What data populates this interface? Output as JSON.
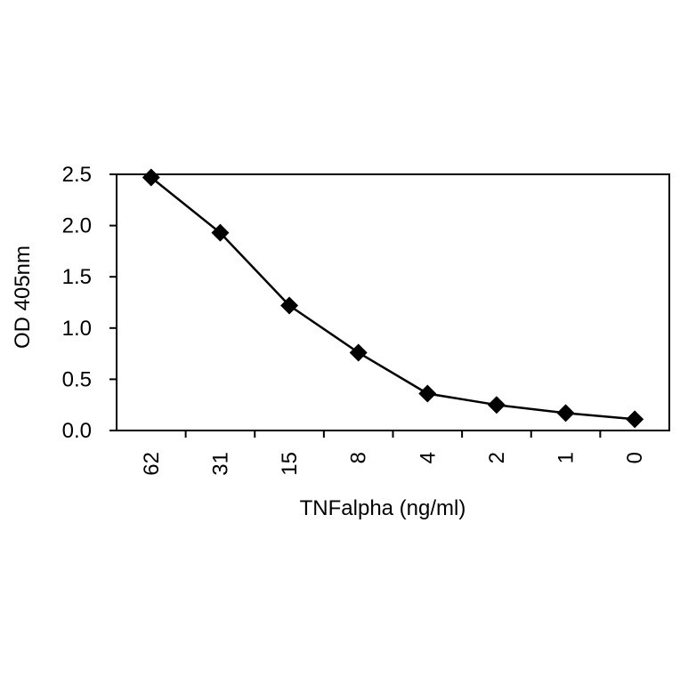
{
  "chart_data": {
    "type": "line",
    "title": "",
    "xlabel": "TNFalpha  (ng/ml)",
    "ylabel": "OD 405nm",
    "categories": [
      "62",
      "31",
      "15",
      "8",
      "4",
      "2",
      "1",
      "0"
    ],
    "values": [
      2.47,
      1.93,
      1.22,
      0.76,
      0.36,
      0.25,
      0.17,
      0.11
    ],
    "ylim": [
      0,
      2.5
    ],
    "yticks": [
      "0.0",
      "0.5",
      "1.0",
      "1.5",
      "2.0",
      "2.5"
    ],
    "marker": "diamond",
    "grid": false,
    "legend": "none",
    "colors": {
      "line": "#000000",
      "marker": "#000000",
      "frame": "#000000",
      "background": "#ffffff"
    }
  }
}
